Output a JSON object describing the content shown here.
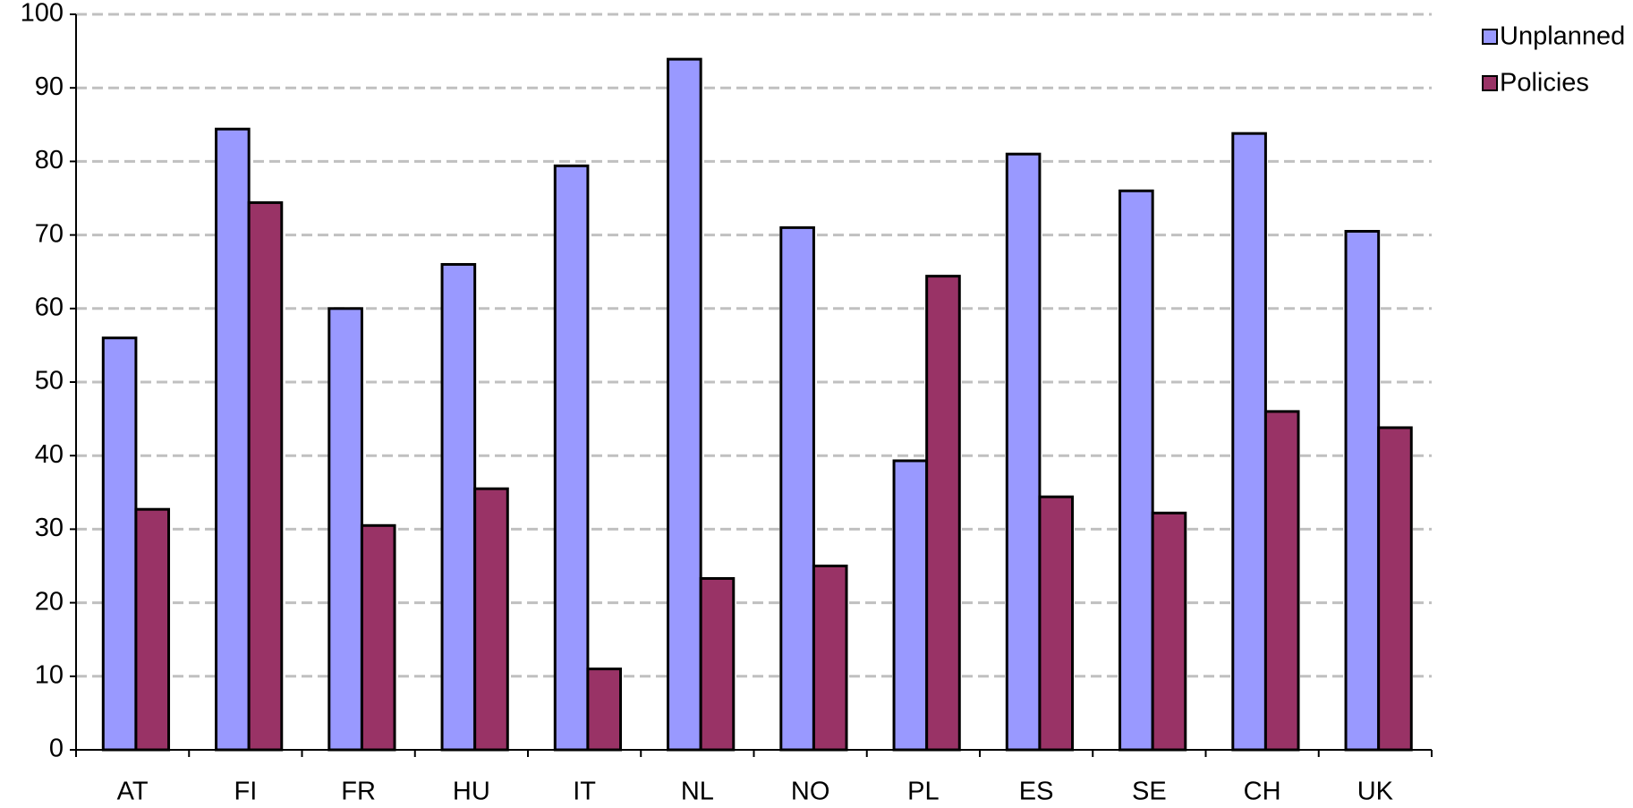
{
  "chart_data": {
    "type": "bar",
    "categories": [
      "AT",
      "FI",
      "FR",
      "HU",
      "IT",
      "NL",
      "NO",
      "PL",
      "ES",
      "SE",
      "CH",
      "UK"
    ],
    "series": [
      {
        "name": "Unplanned",
        "color": "#9999ff",
        "values": [
          56,
          84.4,
          60,
          66,
          79.4,
          93.9,
          71,
          39.3,
          81,
          76,
          83.8,
          70.5
        ]
      },
      {
        "name": "Policies",
        "color": "#993366",
        "values": [
          32.7,
          74.4,
          30.5,
          35.5,
          11,
          23.3,
          25,
          64.4,
          34.4,
          32.2,
          46,
          43.8
        ]
      }
    ],
    "ylim": [
      0,
      100
    ],
    "yticks": [
      0,
      10,
      20,
      30,
      40,
      50,
      60,
      70,
      80,
      90,
      100
    ],
    "grid": true,
    "legend": "right"
  }
}
